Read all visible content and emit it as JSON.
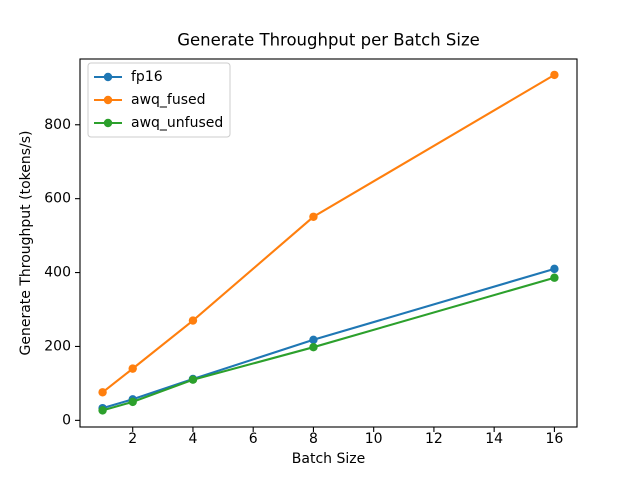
{
  "chart_data": {
    "type": "line",
    "title": "Generate Throughput per Batch Size",
    "xlabel": "Batch Size",
    "ylabel": "Generate Throughput (tokens/s)",
    "x": [
      1,
      2,
      4,
      8,
      16
    ],
    "series": [
      {
        "name": "fp16",
        "color": "#1f77b4",
        "values": [
          33,
          57,
          112,
          218,
          410
        ]
      },
      {
        "name": "awq_fused",
        "color": "#ff7f0e",
        "values": [
          76,
          140,
          270,
          551,
          935
        ]
      },
      {
        "name": "awq_unfused",
        "color": "#2ca02c",
        "values": [
          27,
          50,
          110,
          198,
          386
        ]
      }
    ],
    "xticks": [
      2,
      4,
      6,
      8,
      10,
      12,
      14,
      16
    ],
    "yticks": [
      0,
      200,
      400,
      600,
      800
    ],
    "xlim": [
      0.25,
      16.75
    ],
    "ylim": [
      -18,
      978
    ],
    "grid": false,
    "marker": "o",
    "legend_position": "upper left",
    "colors": {
      "spine": "#000000",
      "legend_border": "#cccccc",
      "background": "#ffffff"
    }
  }
}
